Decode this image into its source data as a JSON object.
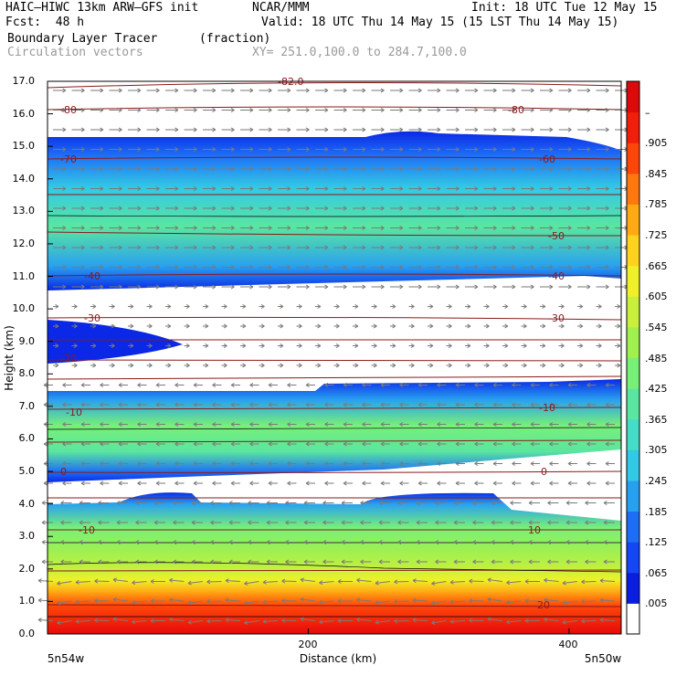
{
  "header": {
    "model": "HAIC–HIWC 13km ARW–GFS init",
    "org": "NCAR/MMM",
    "init": "Init: 18 UTC Tue 12 May 15",
    "fcst": "Fcst:  48 h",
    "valid": "Valid: 18 UTC Thu 14 May 15 (15 LST Thu 14 May 15)",
    "field": "Boundary Layer Tracer",
    "units": "(fraction)",
    "vectors": "Circulation vectors",
    "xy": "XY= 251.0,100.0 to 284.7,100.0"
  },
  "chart_data": {
    "type": "heatmap",
    "title": "Boundary Layer Tracer",
    "units": "(fraction)",
    "xlabel": "Distance (km)",
    "ylabel": "Height (km)",
    "xlim": [
      0,
      440
    ],
    "ylim": [
      0,
      17
    ],
    "yticks": [
      "0.0",
      "1.0",
      "2.0",
      "3.0",
      "4.0",
      "5.0",
      "6.0",
      "7.0",
      "8.0",
      "9.0",
      "10.0",
      "11.0",
      "12.0",
      "13.0",
      "14.0",
      "15.0",
      "16.0",
      "17.0"
    ],
    "xticks": [
      {
        "value": 200,
        "label": "200"
      },
      {
        "value": 400,
        "label": "400"
      }
    ],
    "x_end_labels": [
      "5n54w",
      "5n50w"
    ],
    "colorbar": {
      "labels": [
        ".005",
        ".065",
        ".125",
        ".185",
        ".245",
        ".305",
        ".365",
        ".425",
        ".485",
        ".545",
        ".605",
        ".665",
        ".725",
        ".785",
        ".845",
        ".905",
        "–"
      ],
      "colors": [
        "#ffffff",
        "#0a1ee0",
        "#1446f5",
        "#1e6ef5",
        "#28a0f0",
        "#32c8e6",
        "#46dcc8",
        "#5ae6a0",
        "#78f078",
        "#a0f050",
        "#c8f03c",
        "#f0f028",
        "#ffd21e",
        "#ffaa14",
        "#ff780f",
        "#ff460a",
        "#f01e0a",
        "#dc0a0a"
      ]
    },
    "contour_labels": [
      "-80",
      "-70",
      "-60",
      "-50",
      "-40",
      "-30",
      "-20",
      "-10",
      "0",
      "10",
      "20"
    ],
    "top_contour_label": "-82.0"
  }
}
